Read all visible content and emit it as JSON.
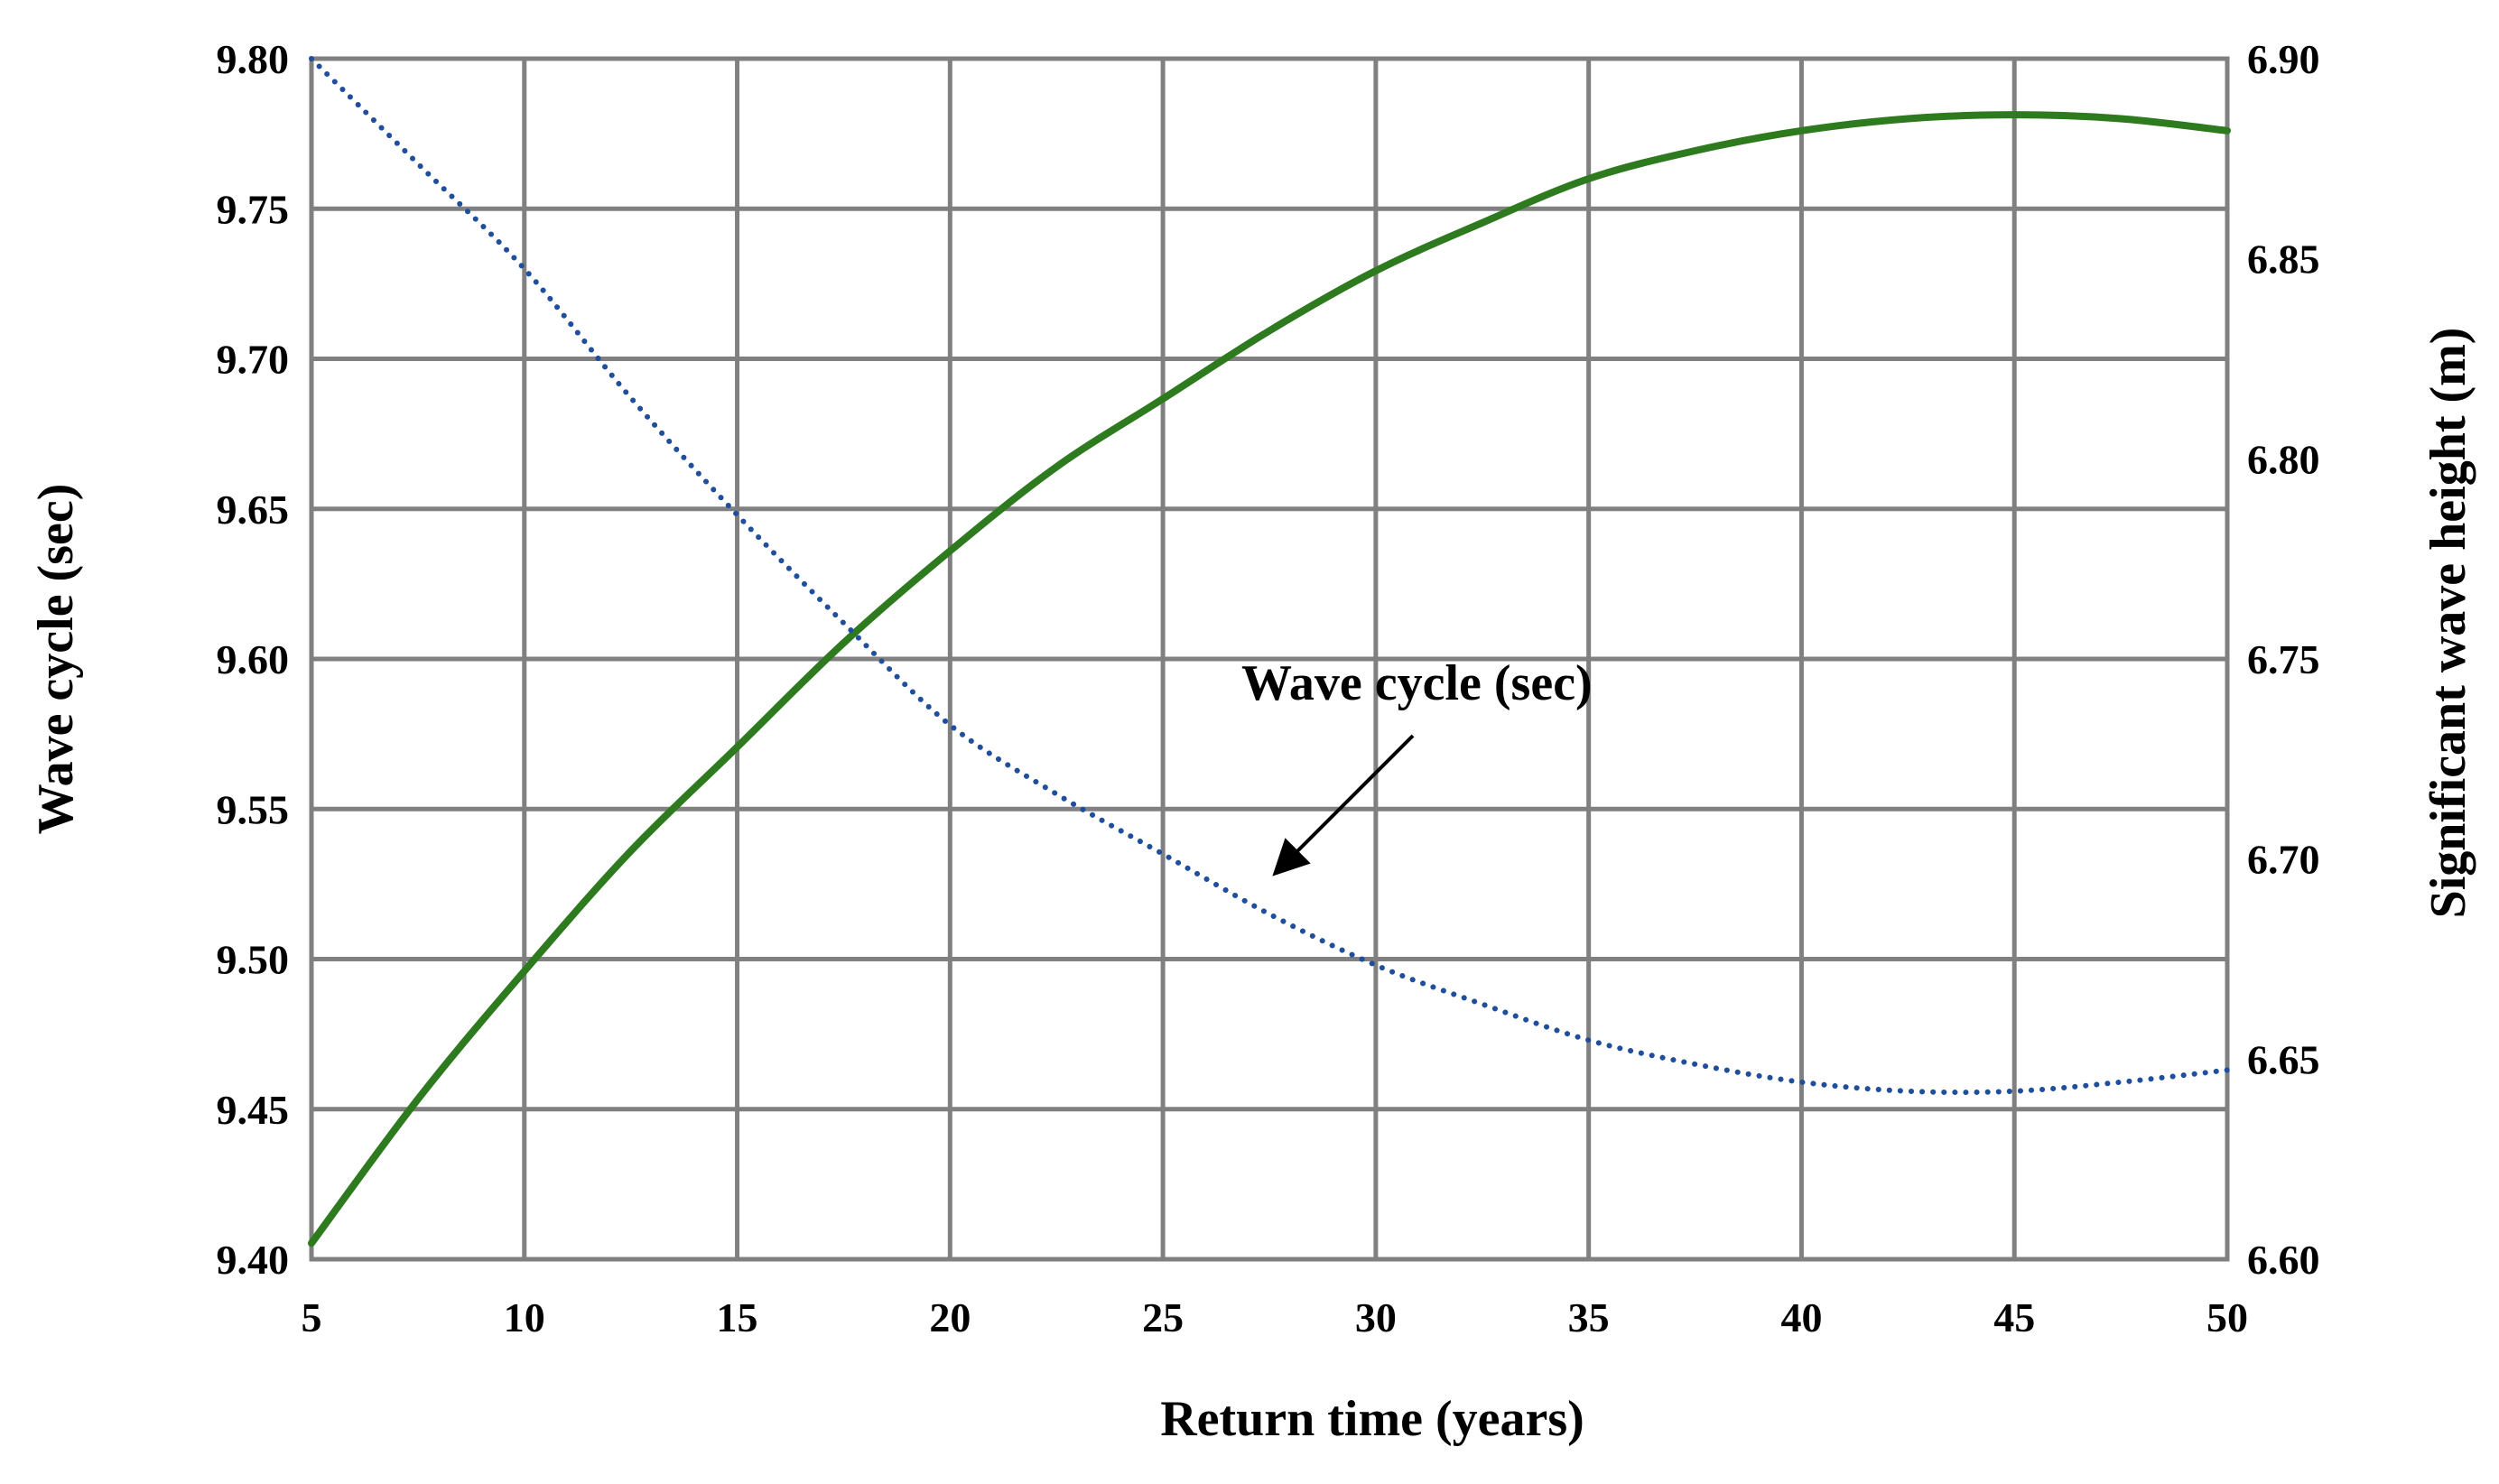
{
  "chart_data": {
    "type": "line",
    "title": "",
    "xlabel": "Return time (years)",
    "ylabel_left": "Wave cycle (sec)",
    "ylabel_right": "Significant wave height (m)",
    "xlim": [
      5,
      50
    ],
    "ylim_left": [
      9.4,
      9.8
    ],
    "ylim_right": [
      6.6,
      6.9
    ],
    "grid": true,
    "x_ticks": [
      "5",
      "10",
      "15",
      "20",
      "25",
      "30",
      "35",
      "40",
      "45",
      "50"
    ],
    "y_left_ticks": [
      "9.40",
      "9.45",
      "9.50",
      "9.55",
      "9.60",
      "9.65",
      "9.70",
      "9.75",
      "9.80"
    ],
    "y_right_ticks": [
      "6.60",
      "6.65",
      "6.70",
      "6.75",
      "6.80",
      "6.85",
      "6.90"
    ],
    "series": [
      {
        "name": "Significant wave height (m)",
        "axis": "right",
        "style": "solid",
        "color": "#2e7a1e",
        "x": [
          5,
          7.5,
          10,
          12.5,
          15,
          17.5,
          20,
          22.5,
          25,
          27.5,
          30,
          32.5,
          35,
          37.5,
          40,
          42.5,
          45,
          47.5,
          50
        ],
        "values": [
          6.604,
          6.64,
          6.672,
          6.702,
          6.728,
          6.754,
          6.777,
          6.798,
          6.815,
          6.832,
          6.847,
          6.859,
          6.87,
          6.877,
          6.882,
          6.885,
          6.886,
          6.885,
          6.882
        ]
      },
      {
        "name": "Wave cycle (sec)",
        "axis": "left",
        "style": "dotted",
        "color": "#1f4e9c",
        "x": [
          5,
          7.5,
          10,
          12.5,
          15,
          17.5,
          20,
          22.5,
          25,
          27.5,
          30,
          32.5,
          35,
          37.5,
          40,
          42.5,
          45,
          47.5,
          50
        ],
        "values": [
          9.8,
          9.765,
          9.73,
          9.687,
          9.648,
          9.612,
          9.578,
          9.555,
          9.535,
          9.515,
          9.498,
          9.485,
          9.473,
          9.465,
          9.459,
          9.456,
          9.456,
          9.459,
          9.463
        ]
      }
    ],
    "annotations": [
      {
        "text": "Wave cycle (sec)",
        "points_to": "Wave cycle (sec)"
      }
    ]
  }
}
